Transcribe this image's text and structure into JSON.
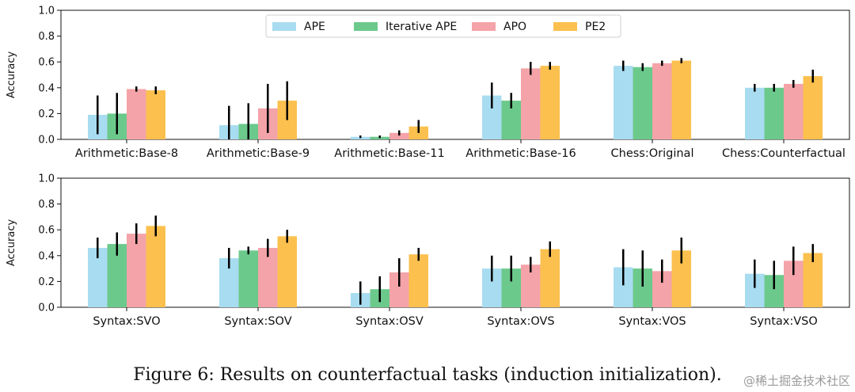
{
  "colors": {
    "APE": "#a8dcf0",
    "Iterative APE": "#6cc98c",
    "APO": "#f4a3a8",
    "PE2": "#fbc04e"
  },
  "caption": "Figure 6: Results on counterfactual tasks (induction initialization).",
  "watermark": "@稀土掘金技术社区",
  "chart_data": [
    {
      "type": "bar",
      "title": "",
      "xlabel": "",
      "ylabel": "Accuracy",
      "ylim": [
        0,
        1.0
      ],
      "yticks": [
        "0.0",
        "0.2",
        "0.4",
        "0.6",
        "0.8",
        "1.0"
      ],
      "legend": {
        "position": "top-center",
        "entries": [
          "APE",
          "Iterative APE",
          "APO",
          "PE2"
        ]
      },
      "categories": [
        "Arithmetic:Base-8",
        "Arithmetic:Base-9",
        "Arithmetic:Base-11",
        "Arithmetic:Base-16",
        "Chess:Original",
        "Chess:Counterfactual"
      ],
      "series": [
        {
          "name": "APE",
          "values": [
            0.19,
            0.11,
            0.02,
            0.34,
            0.57,
            0.4
          ],
          "errors": [
            0.15,
            0.15,
            0.01,
            0.1,
            0.04,
            0.03
          ]
        },
        {
          "name": "Iterative APE",
          "values": [
            0.2,
            0.12,
            0.02,
            0.3,
            0.56,
            0.4
          ],
          "errors": [
            0.16,
            0.16,
            0.01,
            0.06,
            0.03,
            0.03
          ]
        },
        {
          "name": "APO",
          "values": [
            0.39,
            0.24,
            0.05,
            0.55,
            0.59,
            0.43
          ],
          "errors": [
            0.02,
            0.19,
            0.02,
            0.05,
            0.02,
            0.03
          ]
        },
        {
          "name": "PE2",
          "values": [
            0.38,
            0.3,
            0.1,
            0.57,
            0.61,
            0.49
          ],
          "errors": [
            0.03,
            0.15,
            0.05,
            0.03,
            0.02,
            0.05
          ]
        }
      ]
    },
    {
      "type": "bar",
      "title": "",
      "xlabel": "",
      "ylabel": "Accuracy",
      "ylim": [
        0,
        1.0
      ],
      "yticks": [
        "0.0",
        "0.2",
        "0.4",
        "0.6",
        "0.8",
        "1.0"
      ],
      "categories": [
        "Syntax:SVO",
        "Syntax:SOV",
        "Syntax:OSV",
        "Syntax:OVS",
        "Syntax:VOS",
        "Syntax:VSO"
      ],
      "series": [
        {
          "name": "APE",
          "values": [
            0.46,
            0.38,
            0.11,
            0.3,
            0.31,
            0.26
          ],
          "errors": [
            0.08,
            0.08,
            0.09,
            0.1,
            0.14,
            0.11
          ]
        },
        {
          "name": "Iterative APE",
          "values": [
            0.49,
            0.44,
            0.14,
            0.3,
            0.3,
            0.25
          ],
          "errors": [
            0.09,
            0.03,
            0.1,
            0.1,
            0.14,
            0.11
          ]
        },
        {
          "name": "APO",
          "values": [
            0.57,
            0.46,
            0.27,
            0.33,
            0.28,
            0.36
          ],
          "errors": [
            0.08,
            0.07,
            0.11,
            0.06,
            0.09,
            0.11
          ]
        },
        {
          "name": "PE2",
          "values": [
            0.63,
            0.55,
            0.41,
            0.45,
            0.44,
            0.42
          ],
          "errors": [
            0.08,
            0.05,
            0.05,
            0.06,
            0.1,
            0.07
          ]
        }
      ]
    }
  ]
}
